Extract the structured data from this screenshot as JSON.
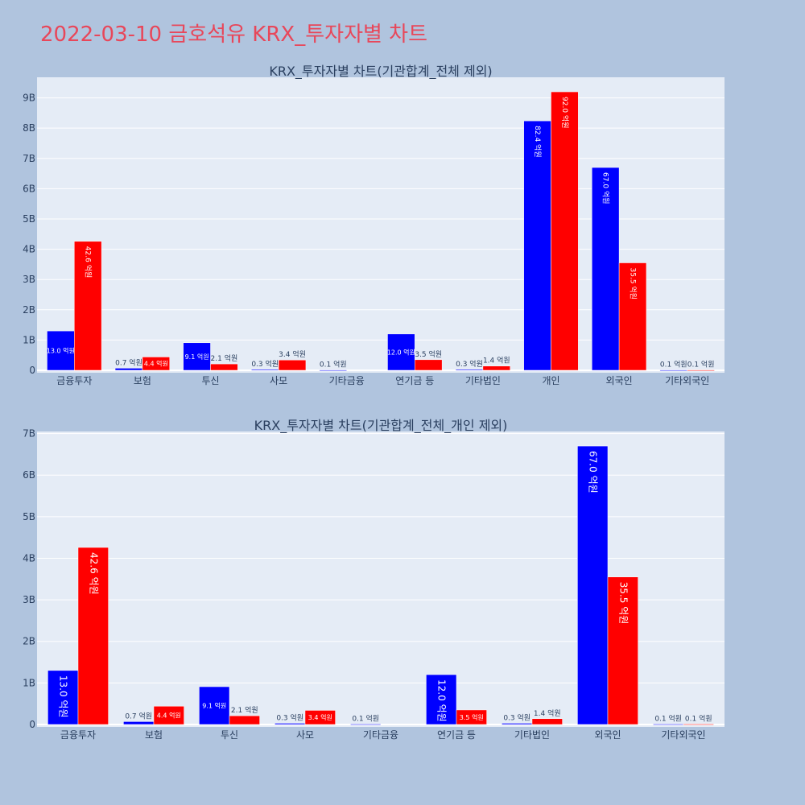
{
  "page": {
    "title": "2022-03-10 금호석유 KRX_투자자별 차트"
  },
  "colors": {
    "series_a": "#0000ff",
    "series_b": "#ff0000",
    "plot_bg": "#e5ecf6",
    "page_bg": "#b0c4de",
    "title": "#e8475a"
  },
  "chart_data": [
    {
      "type": "bar",
      "title": "KRX_투자자별 차트(기관합계_전체 제외)",
      "categories": [
        "금융투자",
        "보험",
        "투신",
        "사모",
        "기타금융",
        "연기금 등",
        "기타법인",
        "개인",
        "외국인",
        "기타외국인"
      ],
      "series": [
        {
          "values": [
            1300000000,
            70000000,
            910000000,
            30000000,
            10000000,
            1200000000,
            30000000,
            8240000000,
            6700000000,
            10000000
          ],
          "labels": [
            "13.0 억원",
            "0.7 억원",
            "9.1 억원",
            "0.3 억원",
            "0.1 억원",
            "12.0 억원",
            "0.3 억원",
            "82.4 억원",
            "67.0 억원",
            "0.1 억원"
          ]
        },
        {
          "values": [
            4260000000,
            440000000,
            210000000,
            340000000,
            0,
            350000000,
            140000000,
            9200000000,
            3550000000,
            10000000
          ],
          "labels": [
            "42.6 억원",
            "4.4 억원",
            "2.1 억원",
            "3.4 억원",
            "",
            "3.5 억원",
            "1.4 억원",
            "92.0 억원",
            "35.5 억원",
            "0.1 억원"
          ]
        }
      ],
      "yticks": [
        "0",
        "1B",
        "2B",
        "3B",
        "4B",
        "5B",
        "6B",
        "7B",
        "8B",
        "9B"
      ],
      "ylim": [
        0,
        9680000000
      ],
      "grid": true
    },
    {
      "type": "bar",
      "title": "KRX_투자자별 차트(기관합계_전체_개인 제외)",
      "categories": [
        "금융투자",
        "보험",
        "투신",
        "사모",
        "기타금융",
        "연기금 등",
        "기타법인",
        "외국인",
        "기타외국인"
      ],
      "series": [
        {
          "values": [
            1300000000,
            70000000,
            910000000,
            30000000,
            10000000,
            1200000000,
            30000000,
            6700000000,
            10000000
          ],
          "labels": [
            "13.0 억원",
            "0.7 억원",
            "9.1 억원",
            "0.3 억원",
            "0.1 억원",
            "12.0 억원",
            "0.3 억원",
            "67.0 억원",
            "0.1 억원"
          ]
        },
        {
          "values": [
            4260000000,
            440000000,
            210000000,
            340000000,
            0,
            350000000,
            140000000,
            3550000000,
            10000000
          ],
          "labels": [
            "42.6 억원",
            "4.4 억원",
            "2.1 억원",
            "3.4 억원",
            "",
            "3.5 억원",
            "1.4 억원",
            "35.5 억원",
            "0.1 억원"
          ]
        }
      ],
      "yticks": [
        "0",
        "1B",
        "2B",
        "3B",
        "4B",
        "5B",
        "6B",
        "7B"
      ],
      "ylim": [
        0,
        7050000000
      ],
      "grid": true
    }
  ]
}
